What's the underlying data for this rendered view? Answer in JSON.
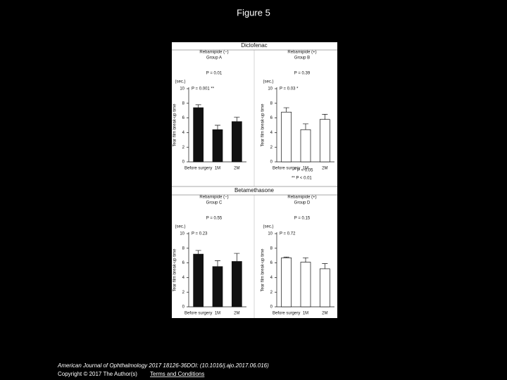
{
  "page": {
    "title": "Figure 5",
    "citation": "American Journal of Ophthalmology 2017 18126-36DOI: (10.1016/j.ajo.2017.06.016)",
    "copyright": "Copyright © 2017 The Author(s)",
    "link": "Terms and Conditions"
  },
  "figure": {
    "sections": [
      "Diclofenac",
      "Betamethasone"
    ],
    "legend": [
      "* P < 0.05",
      "** P < 0.01"
    ]
  },
  "chart_data": [
    {
      "type": "bar",
      "title": "Rebamipide (−)",
      "subtitle": "Group A",
      "top_annotation": "P = 0.01",
      "annotation": "P = 0.001 **",
      "ylabel": "Tear film break-up time",
      "yunit": "(sec.)",
      "categories": [
        "Before surgery",
        "1M",
        "2M"
      ],
      "values": [
        7.4,
        4.4,
        5.5
      ],
      "errors": [
        0.4,
        0.6,
        0.6
      ],
      "color": "#111111",
      "ylim": [
        0,
        10
      ],
      "yticks": [
        0,
        2,
        4,
        6,
        8,
        10
      ]
    },
    {
      "type": "bar",
      "title": "Rebamipide (+)",
      "subtitle": "Group B",
      "top_annotation": "P = 0.39",
      "annotation": "P = 0.03 *",
      "ylabel": "Tear film break-up time",
      "yunit": "(sec.)",
      "categories": [
        "Before surgery",
        "1M",
        "2M"
      ],
      "values": [
        6.8,
        4.4,
        5.8
      ],
      "errors": [
        0.6,
        0.8,
        0.7
      ],
      "color": "#ffffff",
      "ylim": [
        0,
        10
      ],
      "yticks": [
        0,
        2,
        4,
        6,
        8,
        10
      ]
    },
    {
      "type": "bar",
      "title": "Rebamipide (−)",
      "subtitle": "Group C",
      "top_annotation": "P = 0.55",
      "annotation": "P = 0.23",
      "ylabel": "Tear film break-up time",
      "yunit": "(sec.)",
      "categories": [
        "Before surgery",
        "1M",
        "2M"
      ],
      "values": [
        7.2,
        5.5,
        6.2
      ],
      "errors": [
        0.5,
        0.8,
        1.1
      ],
      "color": "#111111",
      "ylim": [
        0,
        10
      ],
      "yticks": [
        0,
        2,
        4,
        6,
        8,
        10
      ]
    },
    {
      "type": "bar",
      "title": "Rebamipide (+)",
      "subtitle": "Group D",
      "top_annotation": "P = 0.15",
      "annotation": "P = 0.72",
      "ylabel": "Tear film break-up time",
      "yunit": "(sec.)",
      "categories": [
        "Before surgery",
        "1M",
        "2M"
      ],
      "values": [
        6.7,
        6.1,
        5.2
      ],
      "errors": [
        0.1,
        0.6,
        0.7
      ],
      "color": "#ffffff",
      "ylim": [
        0,
        10
      ],
      "yticks": [
        0,
        2,
        4,
        6,
        8,
        10
      ]
    }
  ]
}
